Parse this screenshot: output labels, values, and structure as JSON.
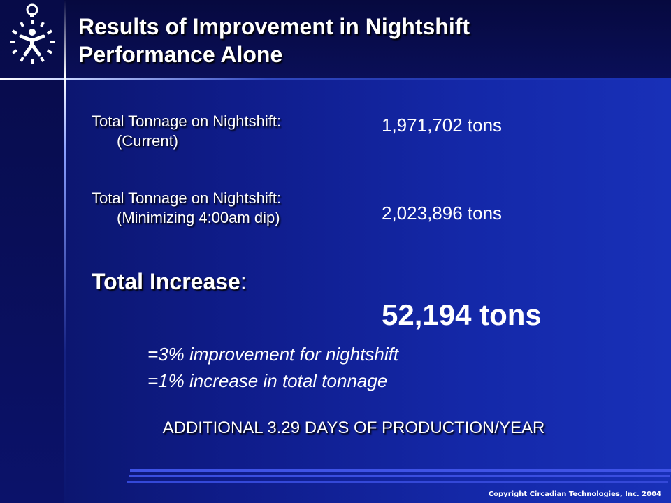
{
  "slide": {
    "title_line1": "Results of Improvement in Nightshift",
    "title_line2": "Performance Alone"
  },
  "rows": [
    {
      "label": "Total Tonnage on Nightshift:",
      "sub": "(Current)",
      "value": "1,971,702 tons"
    },
    {
      "label": "Total Tonnage on Nightshift:",
      "sub": "(Minimizing 4:00am dip)",
      "value": "2,023,896 tons"
    }
  ],
  "increase": {
    "label": "Total Increase",
    "colon": ":",
    "value": "52,194 tons"
  },
  "notes": [
    "=3% improvement for nightshift",
    "=1% increase in total tonnage"
  ],
  "additional": "ADDITIONAL 3.29 DAYS OF PRODUCTION/YEAR",
  "footer": {
    "copyright": "Copyright Circadian Technologies, Inc. 2004"
  },
  "colors": {
    "background": "#1428a8",
    "band": "#070b48",
    "text": "#ffffff",
    "stripe": "#3a4ee0"
  },
  "logo": {
    "icon": "stopwatch-person-icon"
  }
}
